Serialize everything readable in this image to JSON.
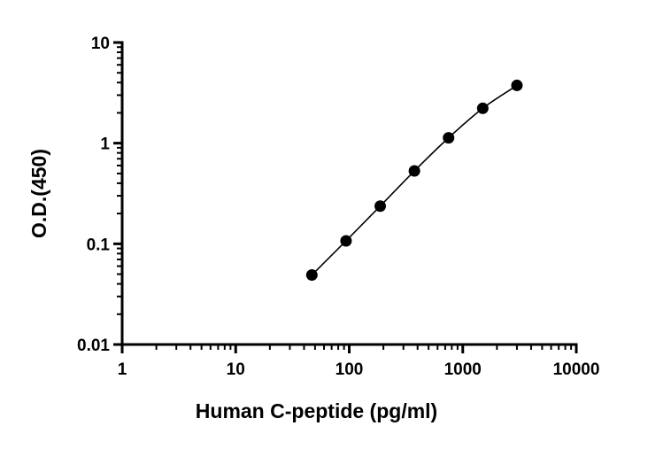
{
  "chart_data": {
    "type": "scatter",
    "title": "",
    "xlabel": "Human C-peptide (pg/ml)",
    "ylabel": "O.D.(450)",
    "xscale": "log",
    "yscale": "log",
    "xlim": [
      1,
      10000
    ],
    "ylim": [
      0.01,
      10
    ],
    "x_ticks": [
      1,
      10,
      100,
      1000,
      10000
    ],
    "x_tick_labels": [
      "1",
      "10",
      "100",
      "1000",
      "10000"
    ],
    "y_ticks": [
      0.01,
      0.1,
      1,
      10
    ],
    "y_tick_labels": [
      "0.01",
      "0.1",
      "1",
      "10"
    ],
    "grid": false,
    "legend": "none",
    "fit_curve": true,
    "series": [
      {
        "x": [
          46.875,
          93.75,
          187.5,
          375,
          750,
          1500,
          3000
        ],
        "y": [
          0.049,
          0.107,
          0.237,
          0.53,
          1.13,
          2.22,
          3.75
        ]
      }
    ],
    "colors": {
      "marker": "#000000",
      "line": "#000000"
    }
  }
}
